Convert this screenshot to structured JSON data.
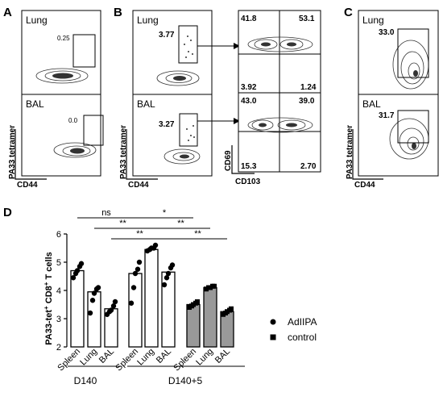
{
  "panel_letters": {
    "a": "A",
    "b": "B",
    "c": "C",
    "d": "D"
  },
  "flow": {
    "A": {
      "y_label": "PA33 tetramer",
      "x_label": "CD44",
      "plots": [
        {
          "tissue": "Lung",
          "gate_value": "0.25"
        },
        {
          "tissue": "BAL",
          "gate_value": "0.0"
        }
      ]
    },
    "B": {
      "y_label": "PA33 tetramer",
      "x_label": "CD44",
      "plots": [
        {
          "tissue": "Lung",
          "gate_value": "3.77"
        },
        {
          "tissue": "BAL",
          "gate_value": "3.27"
        }
      ],
      "quadrant_y_label": "CD69",
      "quadrant_x_label": "CD103",
      "quadrants": [
        {
          "tl": "41.8",
          "tr": "53.1",
          "bl": "3.92",
          "br": "1.24"
        },
        {
          "tl": "43.0",
          "tr": "39.0",
          "bl": "15.3",
          "br": "2.70"
        }
      ]
    },
    "C": {
      "y_label": "PA33 tetramer",
      "x_label": "CD44",
      "plots": [
        {
          "tissue": "Lung",
          "gate_value": "33.0"
        },
        {
          "tissue": "BAL",
          "gate_value": "31.7"
        }
      ]
    }
  },
  "chart_data": {
    "type": "bar",
    "ylabel": "PA33-tet+ CD8+ T cells",
    "ylim": [
      2,
      6
    ],
    "yticks": [
      "2",
      "3",
      "4",
      "5",
      "6"
    ],
    "categories": [
      "Spleen",
      "Lung",
      "BAL",
      "Spleen",
      "Lung",
      "BAL",
      "Spleen",
      "Lung",
      "BAL"
    ],
    "groups": [
      {
        "label": "D140"
      },
      {
        "label": "D140+5"
      }
    ],
    "legend": [
      {
        "label": "AdIIPA",
        "marker": "circle"
      },
      {
        "label": "control",
        "marker": "square"
      }
    ],
    "series": [
      {
        "group": "D140",
        "treatment": "none",
        "fill": "#ffffff",
        "bar": 4.7,
        "points": [
          4.45,
          4.6,
          4.7,
          4.85,
          4.95
        ]
      },
      {
        "group": "D140",
        "treatment": "none",
        "fill": "#ffffff",
        "bar": 3.95,
        "points": [
          3.2,
          3.65,
          3.9,
          4.05,
          4.1
        ]
      },
      {
        "group": "D140",
        "treatment": "none",
        "fill": "#ffffff",
        "bar": 3.35,
        "points": [
          3.15,
          3.25,
          3.3,
          3.45,
          3.6
        ]
      },
      {
        "group": "D140+5",
        "treatment": "AdIIPA",
        "fill": "#ffffff",
        "bar": 4.6,
        "points": [
          3.55,
          4.1,
          4.6,
          4.75,
          5.0
        ]
      },
      {
        "group": "D140+5",
        "treatment": "AdIIPA",
        "fill": "#ffffff",
        "bar": 5.45,
        "points": [
          5.4,
          5.45,
          5.5,
          5.5,
          5.6
        ]
      },
      {
        "group": "D140+5",
        "treatment": "AdIIPA",
        "fill": "#ffffff",
        "bar": 4.65,
        "points": [
          4.2,
          4.45,
          4.6,
          4.8,
          4.9
        ]
      },
      {
        "group": "D140+5",
        "treatment": "control",
        "fill": "#999999",
        "bar": 3.5,
        "points": [
          3.4,
          3.45,
          3.5,
          3.55,
          3.6
        ]
      },
      {
        "group": "D140+5",
        "treatment": "control",
        "fill": "#999999",
        "bar": 4.1,
        "points": [
          4.05,
          4.1,
          4.1,
          4.15,
          4.15
        ]
      },
      {
        "group": "D140+5",
        "treatment": "control",
        "fill": "#999999",
        "bar": 3.25,
        "points": [
          3.15,
          3.2,
          3.25,
          3.3,
          3.35
        ]
      }
    ],
    "significance": [
      {
        "from": 0,
        "to": 3,
        "label": "ns"
      },
      {
        "from": 1,
        "to": 4,
        "label": "**"
      },
      {
        "from": 2,
        "to": 5,
        "label": "**"
      },
      {
        "from": 3,
        "to": 6,
        "label": "*"
      },
      {
        "from": 4,
        "to": 7,
        "label": "**"
      },
      {
        "from": 5,
        "to": 8,
        "label": "**"
      }
    ]
  }
}
